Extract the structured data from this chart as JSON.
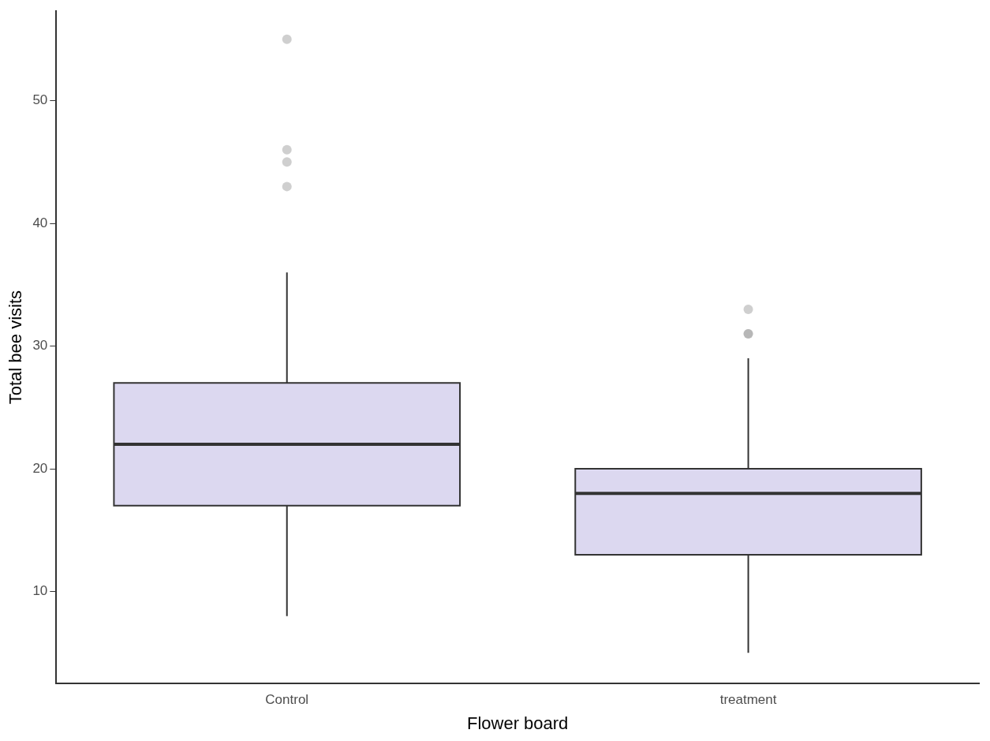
{
  "chart_data": {
    "type": "box",
    "xlabel": "Flower board",
    "ylabel": "Total bee visits",
    "categories": [
      "Control",
      "treatment"
    ],
    "color": "#dcd8f0",
    "boxes": [
      {
        "low": 8,
        "q1": 17,
        "median": 22,
        "q3": 27,
        "high": 36,
        "outliers": [
          43,
          45,
          46,
          55
        ]
      },
      {
        "low": 5,
        "q1": 13,
        "median": 18,
        "q3": 20,
        "high": 29,
        "outliers": [
          31,
          31,
          33
        ]
      }
    ],
    "ylim": [
      2.5,
      57.3
    ],
    "yticks": [
      10,
      20,
      30,
      40,
      50
    ],
    "grid": false,
    "legend": false
  }
}
